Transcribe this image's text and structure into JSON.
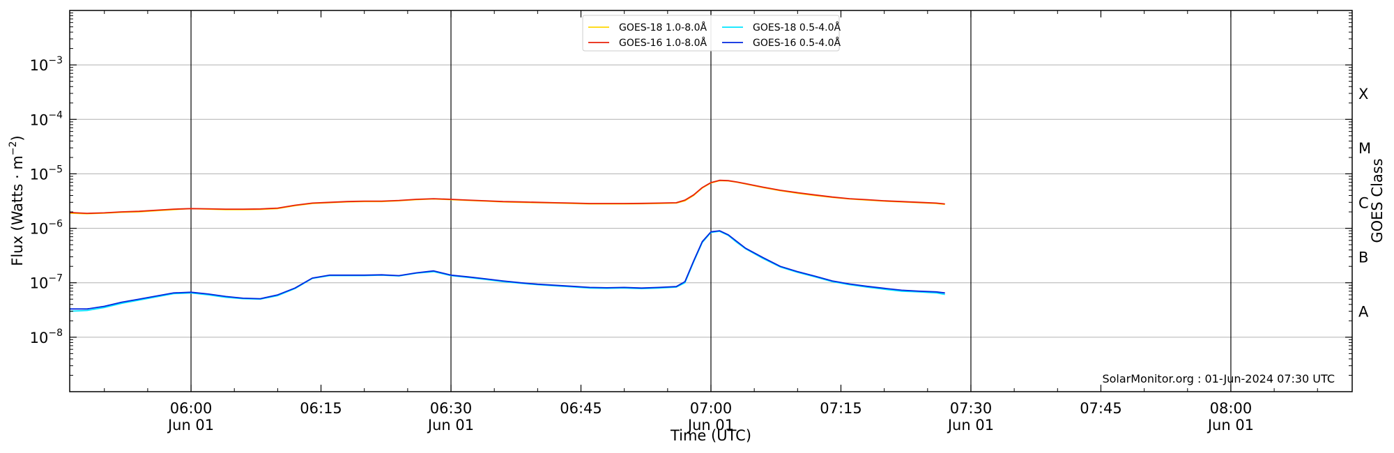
{
  "chart_data": {
    "type": "line",
    "xlabel": "Time (UTC)",
    "ylabel": "Flux (Watts · m",
    "ylabel_exp": "−2",
    "ylabel_close": ")",
    "right_label": "GOES Class",
    "credit": "SolarMonitor.org : 01-Jun-2024 07:30 UTC",
    "y_scale": "log",
    "ylim": [
      1e-09,
      0.01
    ],
    "xlim": [
      "05:46",
      "08:14"
    ],
    "grid": "horizontal",
    "legend_position": "top-center",
    "x_ticks": [
      {
        "time": "06:00",
        "label": "06:00",
        "sub": "Jun 01",
        "vline": true
      },
      {
        "time": "06:15",
        "label": "06:15",
        "sub": "",
        "vline": false
      },
      {
        "time": "06:30",
        "label": "06:30",
        "sub": "Jun 01",
        "vline": true
      },
      {
        "time": "06:45",
        "label": "06:45",
        "sub": "",
        "vline": false
      },
      {
        "time": "07:00",
        "label": "07:00",
        "sub": "Jun 01",
        "vline": true
      },
      {
        "time": "07:15",
        "label": "07:15",
        "sub": "",
        "vline": false
      },
      {
        "time": "07:30",
        "label": "07:30",
        "sub": "Jun 01",
        "vline": true
      },
      {
        "time": "07:45",
        "label": "07:45",
        "sub": "",
        "vline": false
      },
      {
        "time": "08:00",
        "label": "08:00",
        "sub": "Jun 01",
        "vline": true
      }
    ],
    "y_ticks": [
      {
        "value": 1e-08,
        "base": "10",
        "exp": "−8"
      },
      {
        "value": 1e-07,
        "base": "10",
        "exp": "−7"
      },
      {
        "value": 1e-06,
        "base": "10",
        "exp": "−6"
      },
      {
        "value": 1e-05,
        "base": "10",
        "exp": "−5"
      },
      {
        "value": 0.0001,
        "base": "10",
        "exp": "−4"
      },
      {
        "value": 0.001,
        "base": "10",
        "exp": "−3"
      }
    ],
    "goes_classes": [
      {
        "label": "A",
        "value": 3e-08
      },
      {
        "label": "B",
        "value": 3e-07
      },
      {
        "label": "C",
        "value": 3e-06
      },
      {
        "label": "M",
        "value": 3e-05
      },
      {
        "label": "X",
        "value": 0.0003
      }
    ],
    "legend": [
      {
        "name": "GOES-18 1.0-8.0Å",
        "color": "#ffd700"
      },
      {
        "name": "GOES-18 0.5-4.0Å",
        "color": "#00e5ff"
      },
      {
        "name": "GOES-16 1.0-8.0Å",
        "color": "#e8200a"
      },
      {
        "name": "GOES-16 0.5-4.0Å",
        "color": "#0026e0"
      }
    ],
    "series": [
      {
        "name": "GOES-18 1.0-8.0Å",
        "color": "#ffd700",
        "x": [
          "05:46",
          "05:48",
          "05:50",
          "05:52",
          "05:54",
          "05:56",
          "05:58",
          "06:00",
          "06:02",
          "06:04",
          "06:06",
          "06:08",
          "06:10",
          "06:12",
          "06:14",
          "06:16",
          "06:18",
          "06:20",
          "06:22",
          "06:24",
          "06:26",
          "06:28",
          "06:30",
          "06:32",
          "06:34",
          "06:36",
          "06:38",
          "06:40",
          "06:42",
          "06:44",
          "06:46",
          "06:48",
          "06:50",
          "06:52",
          "06:54",
          "06:56",
          "06:57",
          "06:58",
          "06:59",
          "07:00",
          "07:01",
          "07:02",
          "07:03",
          "07:04",
          "07:06",
          "07:08",
          "07:10",
          "07:12",
          "07:14",
          "07:16",
          "07:18",
          "07:20",
          "07:22",
          "07:24",
          "07:26",
          "07:27"
        ],
        "y": [
          1.9e-06,
          1.85e-06,
          1.9e-06,
          1.97e-06,
          2e-06,
          2.1e-06,
          2.2e-06,
          2.3e-06,
          2.25e-06,
          2.2e-06,
          2.2e-06,
          2.22e-06,
          2.3e-06,
          2.6e-06,
          2.85e-06,
          2.95e-06,
          3.05e-06,
          3.1e-06,
          3.1e-06,
          3.2e-06,
          3.35e-06,
          3.45e-06,
          3.35e-06,
          3.25e-06,
          3.15e-06,
          3.05e-06,
          3e-06,
          2.95e-06,
          2.9e-06,
          2.85e-06,
          2.8e-06,
          2.8e-06,
          2.8e-06,
          2.82e-06,
          2.85e-06,
          2.9e-06,
          3.2e-06,
          4e-06,
          5.5e-06,
          6.8e-06,
          7.5e-06,
          7.4e-06,
          7e-06,
          6.5e-06,
          5.6e-06,
          4.9e-06,
          4.4e-06,
          4e-06,
          3.7e-06,
          3.45e-06,
          3.3e-06,
          3.15e-06,
          3.05e-06,
          2.95e-06,
          2.85e-06,
          2.75e-06
        ]
      },
      {
        "name": "GOES-18 0.5-4.0Å",
        "color": "#00e5ff",
        "x": [
          "05:46",
          "05:48",
          "05:50",
          "05:52",
          "05:54",
          "05:56",
          "05:58",
          "06:00",
          "06:02",
          "06:04",
          "06:06",
          "06:08",
          "06:10",
          "06:12",
          "06:14",
          "06:16",
          "06:18",
          "06:20",
          "06:22",
          "06:24",
          "06:26",
          "06:28",
          "06:30",
          "06:32",
          "06:34",
          "06:36",
          "06:38",
          "06:40",
          "06:42",
          "06:44",
          "06:46",
          "06:48",
          "06:50",
          "06:52",
          "06:54",
          "06:56",
          "06:57",
          "06:58",
          "06:59",
          "07:00",
          "07:01",
          "07:02",
          "07:03",
          "07:04",
          "07:06",
          "07:08",
          "07:10",
          "07:12",
          "07:14",
          "07:16",
          "07:18",
          "07:20",
          "07:22",
          "07:24",
          "07:26",
          "07:27"
        ],
        "y": [
          3e-08,
          3.1e-08,
          3.5e-08,
          4.2e-08,
          4.8e-08,
          5.5e-08,
          6.3e-08,
          6.5e-08,
          6e-08,
          5.4e-08,
          5.1e-08,
          5e-08,
          5.8e-08,
          7.8e-08,
          1.2e-07,
          1.35e-07,
          1.35e-07,
          1.35e-07,
          1.38e-07,
          1.33e-07,
          1.5e-07,
          1.6e-07,
          1.35e-07,
          1.25e-07,
          1.15e-07,
          1.05e-07,
          9.8e-08,
          9.2e-08,
          8.8e-08,
          8.4e-08,
          8e-08,
          7.9e-08,
          8e-08,
          7.8e-08,
          8e-08,
          8.3e-08,
          1e-07,
          2.4e-07,
          5.5e-07,
          8.4e-07,
          8.8e-07,
          7.4e-07,
          5.5e-07,
          4.2e-07,
          2.8e-07,
          1.95e-07,
          1.55e-07,
          1.28e-07,
          1.05e-07,
          9.2e-08,
          8.3e-08,
          7.6e-08,
          7e-08,
          6.8e-08,
          6.5e-08,
          6.1e-08
        ]
      },
      {
        "name": "GOES-16 1.0-8.0Å",
        "color": "#e8200a",
        "x": [
          "05:46",
          "05:48",
          "05:50",
          "05:52",
          "05:54",
          "05:56",
          "05:58",
          "06:00",
          "06:02",
          "06:04",
          "06:06",
          "06:08",
          "06:10",
          "06:12",
          "06:14",
          "06:16",
          "06:18",
          "06:20",
          "06:22",
          "06:24",
          "06:26",
          "06:28",
          "06:30",
          "06:32",
          "06:34",
          "06:36",
          "06:38",
          "06:40",
          "06:42",
          "06:44",
          "06:46",
          "06:48",
          "06:50",
          "06:52",
          "06:54",
          "06:56",
          "06:57",
          "06:58",
          "06:59",
          "07:00",
          "07:01",
          "07:02",
          "07:03",
          "07:04",
          "07:06",
          "07:08",
          "07:10",
          "07:12",
          "07:14",
          "07:16",
          "07:18",
          "07:20",
          "07:22",
          "07:24",
          "07:26",
          "07:27"
        ],
        "y": [
          1.95e-06,
          1.88e-06,
          1.92e-06,
          2e-06,
          2.05e-06,
          2.15e-06,
          2.25e-06,
          2.3e-06,
          2.28e-06,
          2.25e-06,
          2.25e-06,
          2.27e-06,
          2.35e-06,
          2.65e-06,
          2.9e-06,
          3e-06,
          3.1e-06,
          3.15e-06,
          3.15e-06,
          3.25e-06,
          3.4e-06,
          3.5e-06,
          3.4e-06,
          3.3e-06,
          3.2e-06,
          3.1e-06,
          3.05e-06,
          3e-06,
          2.95e-06,
          2.9e-06,
          2.85e-06,
          2.85e-06,
          2.85e-06,
          2.87e-06,
          2.9e-06,
          2.95e-06,
          3.3e-06,
          4.1e-06,
          5.6e-06,
          6.9e-06,
          7.6e-06,
          7.5e-06,
          7.1e-06,
          6.6e-06,
          5.7e-06,
          5e-06,
          4.5e-06,
          4.1e-06,
          3.75e-06,
          3.5e-06,
          3.35e-06,
          3.2e-06,
          3.1e-06,
          3e-06,
          2.9e-06,
          2.8e-06
        ]
      },
      {
        "name": "GOES-16 0.5-4.0Å",
        "color": "#0026e0",
        "x": [
          "05:46",
          "05:48",
          "05:50",
          "05:52",
          "05:54",
          "05:56",
          "05:58",
          "06:00",
          "06:02",
          "06:04",
          "06:06",
          "06:08",
          "06:10",
          "06:12",
          "06:14",
          "06:16",
          "06:18",
          "06:20",
          "06:22",
          "06:24",
          "06:26",
          "06:28",
          "06:30",
          "06:32",
          "06:34",
          "06:36",
          "06:38",
          "06:40",
          "06:42",
          "06:44",
          "06:46",
          "06:48",
          "06:50",
          "06:52",
          "06:54",
          "06:56",
          "06:57",
          "06:58",
          "06:59",
          "07:00",
          "07:01",
          "07:02",
          "07:03",
          "07:04",
          "07:06",
          "07:08",
          "07:10",
          "07:12",
          "07:14",
          "07:16",
          "07:18",
          "07:20",
          "07:22",
          "07:24",
          "07:26",
          "07:27"
        ],
        "y": [
          3.3e-08,
          3.3e-08,
          3.7e-08,
          4.4e-08,
          5e-08,
          5.7e-08,
          6.5e-08,
          6.7e-08,
          6.2e-08,
          5.6e-08,
          5.2e-08,
          5.1e-08,
          6e-08,
          8e-08,
          1.22e-07,
          1.38e-07,
          1.38e-07,
          1.38e-07,
          1.4e-07,
          1.35e-07,
          1.52e-07,
          1.65e-07,
          1.38e-07,
          1.28e-07,
          1.18e-07,
          1.08e-07,
          1e-07,
          9.4e-08,
          9e-08,
          8.6e-08,
          8.2e-08,
          8.1e-08,
          8.2e-08,
          8e-08,
          8.2e-08,
          8.5e-08,
          1.05e-07,
          2.5e-07,
          5.7e-07,
          8.6e-07,
          9e-07,
          7.6e-07,
          5.7e-07,
          4.3e-07,
          2.9e-07,
          2e-07,
          1.6e-07,
          1.32e-07,
          1.08e-07,
          9.5e-08,
          8.6e-08,
          7.9e-08,
          7.3e-08,
          7e-08,
          6.8e-08,
          6.5e-08
        ]
      }
    ]
  }
}
